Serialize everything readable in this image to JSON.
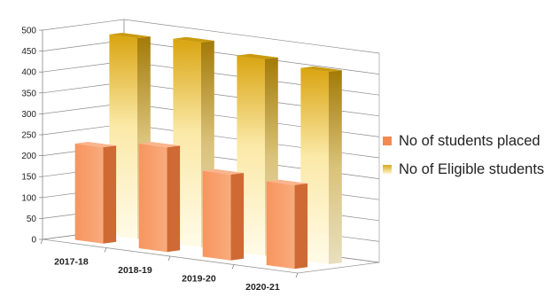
{
  "chart_data": {
    "type": "bar",
    "categories": [
      "2017-18",
      "2018-19",
      "2019-20",
      "2020-21"
    ],
    "series": [
      {
        "name": "No of students placed",
        "values": [
          230,
          250,
          205,
          200
        ],
        "color": "#f48a52"
      },
      {
        "name": "No of Eligible students",
        "values": [
          480,
          490,
          470,
          460
        ],
        "color": "#d6a81a"
      }
    ],
    "yticks": [
      0,
      50,
      100,
      150,
      200,
      250,
      300,
      350,
      400,
      450,
      500
    ],
    "ylim": [
      0,
      500
    ],
    "grid": true,
    "legend_position": "right"
  }
}
